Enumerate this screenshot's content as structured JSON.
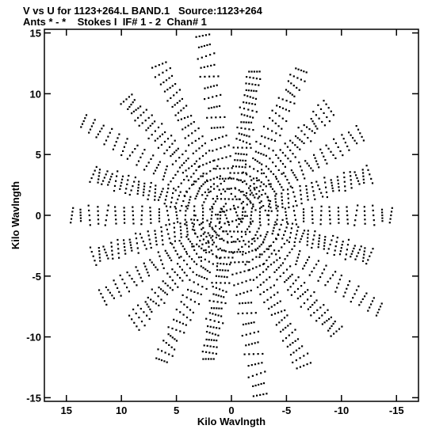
{
  "chart_data": {
    "type": "scatter",
    "title": "V vs U for 1123+264.L BAND.1   Source:1123+264",
    "subtitle": "Ants * - *    Stokes I  IF# 1 - 2  Chan# 1",
    "xlabel": "Kilo Wavlngth",
    "ylabel": "Kilo Wavlngth",
    "xlim": [
      17,
      -17
    ],
    "ylim": [
      -15.3,
      15.3
    ],
    "xticks": [
      15,
      10,
      5,
      0,
      -5,
      -10,
      -15
    ],
    "xtick_labels": [
      "15",
      "10",
      "5",
      "0",
      "-5",
      "-10",
      "-15"
    ],
    "yticks": [
      -15,
      -10,
      -5,
      0,
      5,
      10,
      15
    ],
    "ytick_labels": [
      "-15",
      "-10",
      "-5",
      "0",
      "5",
      "10",
      "15"
    ],
    "grid": false,
    "point_color": "#000000",
    "tracks": [
      {
        "angle": 80,
        "rmin": 0.5,
        "rmax": 15.0
      },
      {
        "angle": 62,
        "rmin": 2.0,
        "rmax": 14.0
      },
      {
        "angle": 45,
        "rmin": 3.0,
        "rmax": 13.5
      },
      {
        "angle": 30,
        "rmin": 1.0,
        "rmax": 15.5
      },
      {
        "angle": 15,
        "rmin": 4.0,
        "rmax": 13.0
      },
      {
        "angle": 0,
        "rmin": 1.0,
        "rmax": 14.5
      },
      {
        "angle": -15,
        "rmin": 3.0,
        "rmax": 13.0
      },
      {
        "angle": -30,
        "rmin": 0.5,
        "rmax": 13.5
      },
      {
        "angle": -45,
        "rmin": 2.0,
        "rmax": 12.5
      },
      {
        "angle": -62,
        "rmin": 1.5,
        "rmax": 13.5
      },
      {
        "angle": -80,
        "rmin": 3.0,
        "rmax": 12.0
      }
    ]
  }
}
